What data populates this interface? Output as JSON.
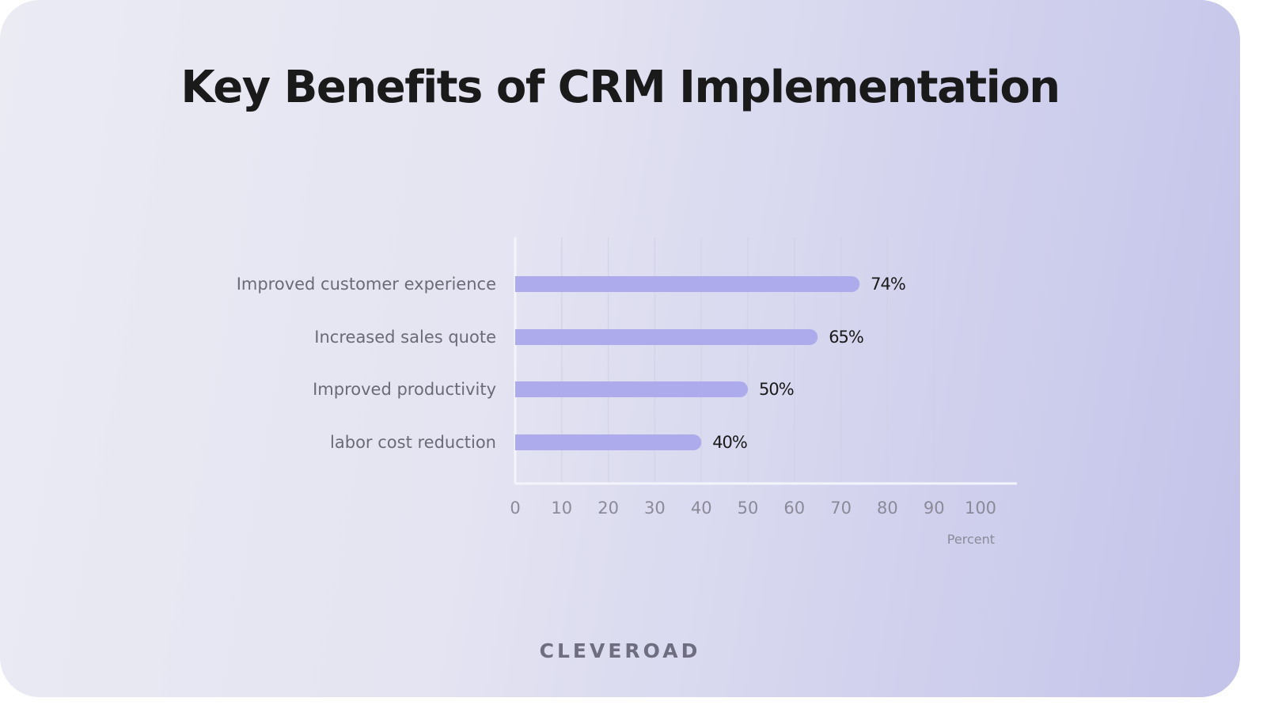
{
  "title": "Key Benefits of CRM Implementation",
  "logo_text": "CLEVEROAD",
  "colors": {
    "bar": "#adabeb",
    "label": "#6b6b78",
    "value": "#1a1a1a",
    "axis": "#f4f4fb",
    "grid": "#cfcfe6"
  },
  "chart_data": {
    "type": "bar",
    "orientation": "horizontal",
    "categories": [
      "Improved customer experience",
      "Increased sales quote",
      "Improved productivity",
      "labor cost reduction"
    ],
    "values": [
      74,
      65,
      50,
      40
    ],
    "data_labels": [
      "74%",
      "65%",
      "50%",
      "40%"
    ],
    "xlabel": "Percent",
    "ylabel": "",
    "xlim": [
      0,
      100
    ],
    "xticks": [
      "0",
      "10",
      "20",
      "30",
      "40",
      "50",
      "60",
      "70",
      "80",
      "90",
      "100"
    ],
    "grid": "vertical"
  }
}
